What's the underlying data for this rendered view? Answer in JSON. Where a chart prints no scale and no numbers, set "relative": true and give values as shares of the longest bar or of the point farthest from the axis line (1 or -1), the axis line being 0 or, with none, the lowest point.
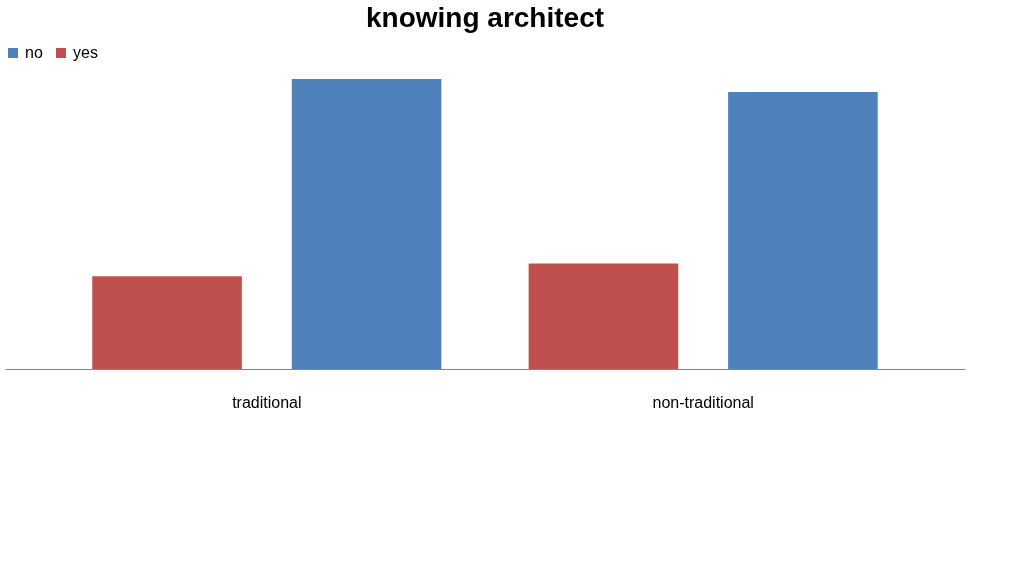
{
  "chart_data": {
    "type": "bar",
    "title": "knowing architect",
    "categories": [
      "traditional",
      "non-traditional"
    ],
    "relative": true,
    "legend": "top",
    "series": [
      {
        "name": "no",
        "color": "#4f81bd",
        "values": [
          1,
          0.955
        ]
      },
      {
        "name": "yes",
        "color": "#c0504d",
        "values": [
          0.32,
          0.364
        ]
      }
    ]
  }
}
